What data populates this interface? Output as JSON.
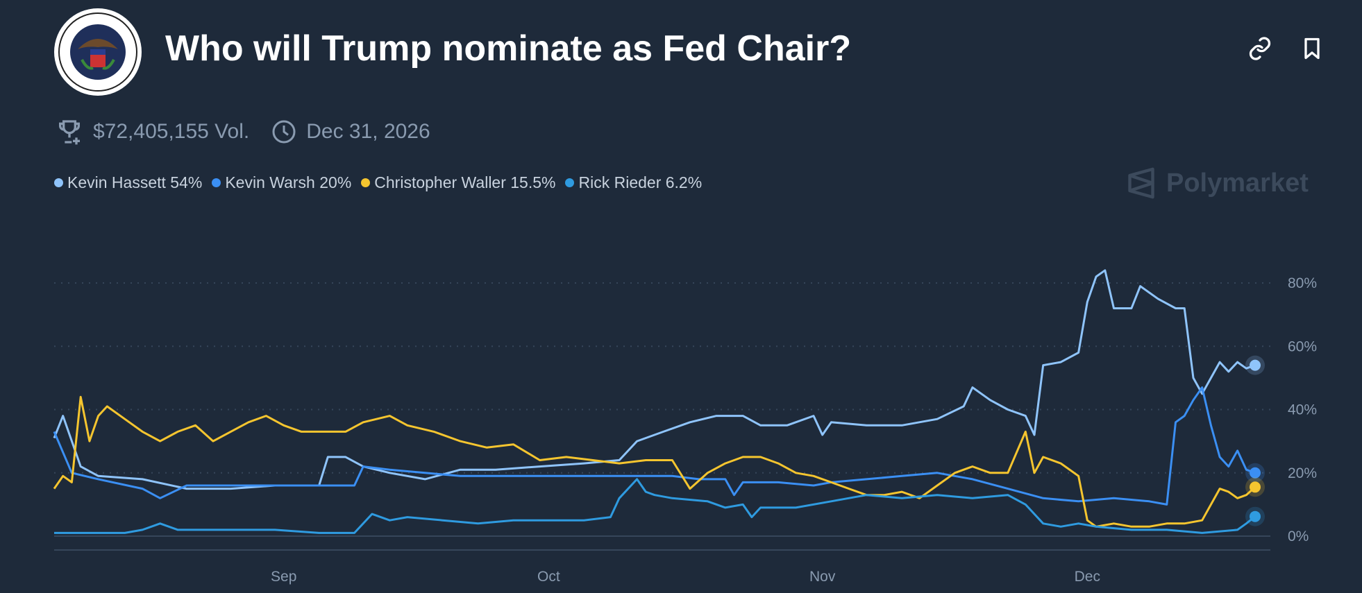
{
  "header": {
    "title": "Who will Trump nominate as Fed Chair?",
    "logo_text": "BOARD OF GOVERNORS OF THE FEDERAL RESERVE SYSTEM",
    "icons": [
      "link-icon",
      "bookmark-icon"
    ]
  },
  "meta": {
    "volume": "$72,405,155 Vol.",
    "end_date": "Dec 31, 2026"
  },
  "brand": "Polymarket",
  "legend": [
    {
      "label": "Kevin Hassett 54%",
      "color": "#8fc4fb"
    },
    {
      "label": "Kevin Warsh 20%",
      "color": "#3b8ff3"
    },
    {
      "label": "Christopher Waller 15.5%",
      "color": "#f5c52f"
    },
    {
      "label": "Rick Rieder 6.2%",
      "color": "#2f9be0"
    }
  ],
  "chart_data": {
    "type": "line",
    "title": "Who will Trump nominate as Fed Chair?",
    "xlabel": "",
    "ylabel": "",
    "x_unit": "days since Aug 6",
    "xlim": [
      0,
      136
    ],
    "ylim": [
      0,
      90
    ],
    "x_ticks": [
      {
        "label": "Sep",
        "x": 26
      },
      {
        "label": "Oct",
        "x": 56
      },
      {
        "label": "Nov",
        "x": 87
      },
      {
        "label": "Dec",
        "x": 117
      }
    ],
    "y_ticks": [
      {
        "label": "0%",
        "y": 0
      },
      {
        "label": "20%",
        "y": 20
      },
      {
        "label": "40%",
        "y": 40
      },
      {
        "label": "60%",
        "y": 60
      },
      {
        "label": "80%",
        "y": 80
      }
    ],
    "grid": true,
    "legend_position": "top-left",
    "series": [
      {
        "name": "Kevin Hassett",
        "color": "#8fc4fb",
        "last": 54,
        "points": [
          [
            0,
            31
          ],
          [
            1,
            38
          ],
          [
            3,
            22
          ],
          [
            5,
            19
          ],
          [
            10,
            18
          ],
          [
            15,
            15
          ],
          [
            20,
            15
          ],
          [
            25,
            16
          ],
          [
            30,
            16
          ],
          [
            31,
            25
          ],
          [
            33,
            25
          ],
          [
            35,
            22
          ],
          [
            38,
            20
          ],
          [
            42,
            18
          ],
          [
            46,
            21
          ],
          [
            50,
            21
          ],
          [
            55,
            22
          ],
          [
            60,
            23
          ],
          [
            64,
            24
          ],
          [
            66,
            30
          ],
          [
            69,
            33
          ],
          [
            72,
            36
          ],
          [
            75,
            38
          ],
          [
            78,
            38
          ],
          [
            80,
            35
          ],
          [
            83,
            35
          ],
          [
            86,
            38
          ],
          [
            87,
            32
          ],
          [
            88,
            36
          ],
          [
            92,
            35
          ],
          [
            96,
            35
          ],
          [
            100,
            37
          ],
          [
            103,
            41
          ],
          [
            104,
            47
          ],
          [
            106,
            43
          ],
          [
            108,
            40
          ],
          [
            110,
            38
          ],
          [
            111,
            32
          ],
          [
            112,
            54
          ],
          [
            114,
            55
          ],
          [
            116,
            58
          ],
          [
            117,
            74
          ],
          [
            118,
            82
          ],
          [
            119,
            84
          ],
          [
            120,
            72
          ],
          [
            122,
            72
          ],
          [
            123,
            79
          ],
          [
            125,
            75
          ],
          [
            127,
            72
          ],
          [
            128,
            72
          ],
          [
            129,
            50
          ],
          [
            130,
            45
          ],
          [
            131,
            50
          ],
          [
            132,
            55
          ],
          [
            133,
            52
          ],
          [
            134,
            55
          ],
          [
            135,
            53
          ],
          [
            136,
            54
          ]
        ]
      },
      {
        "name": "Kevin Warsh",
        "color": "#3b8ff3",
        "last": 20,
        "points": [
          [
            0,
            33
          ],
          [
            2,
            20
          ],
          [
            5,
            18
          ],
          [
            10,
            15
          ],
          [
            12,
            12
          ],
          [
            15,
            16
          ],
          [
            20,
            16
          ],
          [
            25,
            16
          ],
          [
            30,
            16
          ],
          [
            34,
            16
          ],
          [
            35,
            22
          ],
          [
            38,
            21
          ],
          [
            42,
            20
          ],
          [
            46,
            19
          ],
          [
            50,
            19
          ],
          [
            55,
            19
          ],
          [
            60,
            19
          ],
          [
            66,
            19
          ],
          [
            70,
            19
          ],
          [
            73,
            18
          ],
          [
            76,
            18
          ],
          [
            77,
            13
          ],
          [
            78,
            17
          ],
          [
            82,
            17
          ],
          [
            86,
            16
          ],
          [
            88,
            17
          ],
          [
            92,
            18
          ],
          [
            96,
            19
          ],
          [
            100,
            20
          ],
          [
            104,
            18
          ],
          [
            108,
            15
          ],
          [
            112,
            12
          ],
          [
            116,
            11
          ],
          [
            120,
            12
          ],
          [
            124,
            11
          ],
          [
            126,
            10
          ],
          [
            127,
            36
          ],
          [
            128,
            38
          ],
          [
            129,
            43
          ],
          [
            130,
            47
          ],
          [
            131,
            35
          ],
          [
            132,
            25
          ],
          [
            133,
            22
          ],
          [
            134,
            27
          ],
          [
            135,
            21
          ],
          [
            136,
            20
          ]
        ]
      },
      {
        "name": "Christopher Waller",
        "color": "#f5c52f",
        "last": 15.5,
        "points": [
          [
            0,
            15
          ],
          [
            1,
            19
          ],
          [
            2,
            17
          ],
          [
            3,
            44
          ],
          [
            4,
            30
          ],
          [
            5,
            38
          ],
          [
            6,
            41
          ],
          [
            8,
            37
          ],
          [
            10,
            33
          ],
          [
            12,
            30
          ],
          [
            14,
            33
          ],
          [
            16,
            35
          ],
          [
            18,
            30
          ],
          [
            20,
            33
          ],
          [
            22,
            36
          ],
          [
            24,
            38
          ],
          [
            26,
            35
          ],
          [
            28,
            33
          ],
          [
            30,
            33
          ],
          [
            33,
            33
          ],
          [
            35,
            36
          ],
          [
            38,
            38
          ],
          [
            40,
            35
          ],
          [
            43,
            33
          ],
          [
            46,
            30
          ],
          [
            49,
            28
          ],
          [
            52,
            29
          ],
          [
            55,
            24
          ],
          [
            58,
            25
          ],
          [
            61,
            24
          ],
          [
            64,
            23
          ],
          [
            67,
            24
          ],
          [
            70,
            24
          ],
          [
            72,
            15
          ],
          [
            74,
            20
          ],
          [
            76,
            23
          ],
          [
            78,
            25
          ],
          [
            80,
            25
          ],
          [
            82,
            23
          ],
          [
            84,
            20
          ],
          [
            86,
            19
          ],
          [
            88,
            17
          ],
          [
            90,
            15
          ],
          [
            92,
            13
          ],
          [
            94,
            13
          ],
          [
            96,
            14
          ],
          [
            98,
            12
          ],
          [
            100,
            16
          ],
          [
            102,
            20
          ],
          [
            104,
            22
          ],
          [
            106,
            20
          ],
          [
            108,
            20
          ],
          [
            110,
            33
          ],
          [
            111,
            20
          ],
          [
            112,
            25
          ],
          [
            114,
            23
          ],
          [
            116,
            19
          ],
          [
            117,
            5
          ],
          [
            118,
            3
          ],
          [
            120,
            4
          ],
          [
            122,
            3
          ],
          [
            124,
            3
          ],
          [
            126,
            4
          ],
          [
            128,
            4
          ],
          [
            130,
            5
          ],
          [
            132,
            15
          ],
          [
            133,
            14
          ],
          [
            134,
            12
          ],
          [
            135,
            13
          ],
          [
            136,
            15.5
          ]
        ]
      },
      {
        "name": "Rick Rieder",
        "color": "#2f9be0",
        "last": 6.2,
        "points": [
          [
            0,
            1
          ],
          [
            8,
            1
          ],
          [
            10,
            2
          ],
          [
            12,
            4
          ],
          [
            14,
            2
          ],
          [
            20,
            2
          ],
          [
            25,
            2
          ],
          [
            30,
            1
          ],
          [
            34,
            1
          ],
          [
            36,
            7
          ],
          [
            38,
            5
          ],
          [
            40,
            6
          ],
          [
            44,
            5
          ],
          [
            48,
            4
          ],
          [
            52,
            5
          ],
          [
            56,
            5
          ],
          [
            60,
            5
          ],
          [
            63,
            6
          ],
          [
            64,
            12
          ],
          [
            66,
            18
          ],
          [
            67,
            14
          ],
          [
            68,
            13
          ],
          [
            70,
            12
          ],
          [
            74,
            11
          ],
          [
            76,
            9
          ],
          [
            78,
            10
          ],
          [
            79,
            6
          ],
          [
            80,
            9
          ],
          [
            84,
            9
          ],
          [
            88,
            11
          ],
          [
            92,
            13
          ],
          [
            96,
            12
          ],
          [
            100,
            13
          ],
          [
            104,
            12
          ],
          [
            108,
            13
          ],
          [
            110,
            10
          ],
          [
            112,
            4
          ],
          [
            114,
            3
          ],
          [
            116,
            4
          ],
          [
            118,
            3
          ],
          [
            122,
            2
          ],
          [
            126,
            2
          ],
          [
            130,
            1
          ],
          [
            134,
            2
          ],
          [
            135,
            4
          ],
          [
            136,
            6.2
          ]
        ]
      }
    ]
  }
}
